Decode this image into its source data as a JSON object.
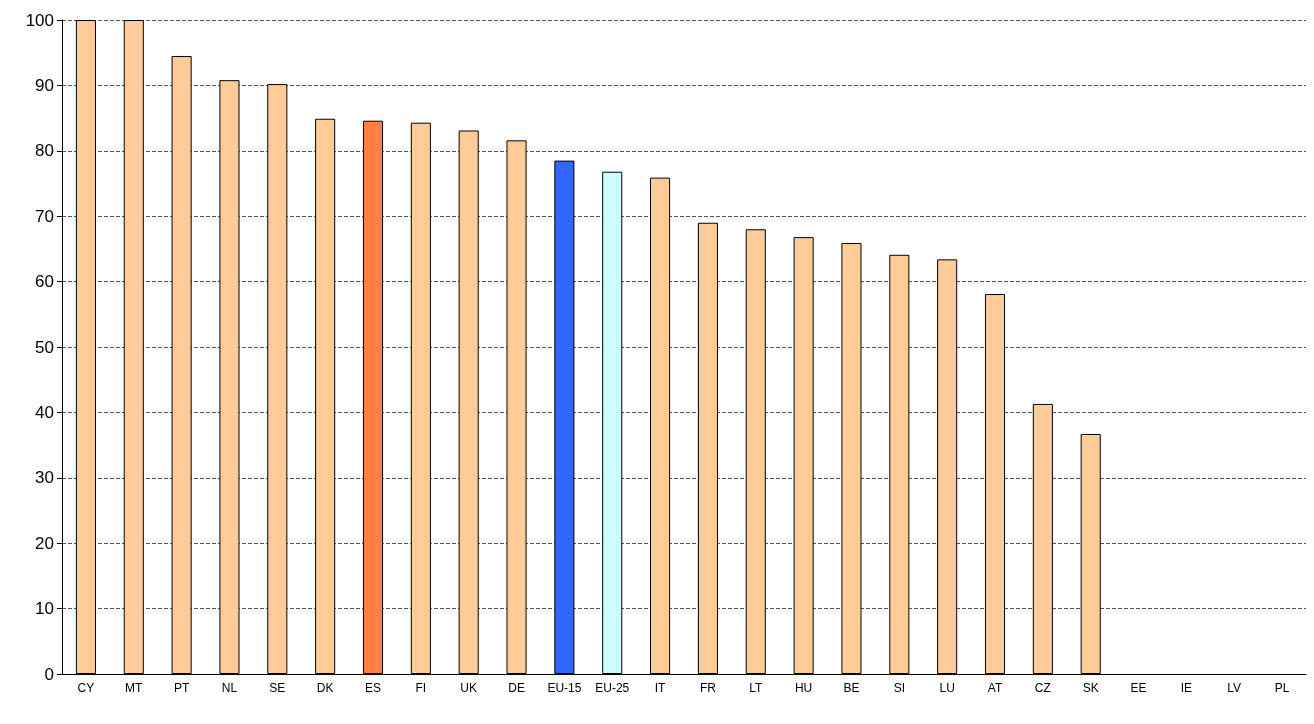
{
  "chart_data": {
    "type": "bar",
    "categories": [
      "CY",
      "MT",
      "PT",
      "NL",
      "SE",
      "DK",
      "ES",
      "FI",
      "UK",
      "DE",
      "EU-15",
      "EU-25",
      "IT",
      "FR",
      "LT",
      "HU",
      "BE",
      "SI",
      "LU",
      "AT",
      "CZ",
      "SK",
      "EE",
      "IE",
      "LV",
      "PL"
    ],
    "values": [
      100,
      100,
      94.5,
      90.8,
      90.2,
      84.9,
      84.6,
      84.3,
      83.1,
      81.6,
      78.5,
      76.8,
      75.9,
      69,
      68,
      66.8,
      65.9,
      64.1,
      63.4,
      58.1,
      41.3,
      36.7,
      null,
      null,
      null,
      null
    ],
    "colors": [
      "#ffcc99",
      "#ffcc99",
      "#ffcc99",
      "#ffcc99",
      "#ffcc99",
      "#ffcc99",
      "#ff8040",
      "#ffcc99",
      "#ffcc99",
      "#ffcc99",
      "#3366ff",
      "#ccffff",
      "#ffcc99",
      "#ffcc99",
      "#ffcc99",
      "#ffcc99",
      "#ffcc99",
      "#ffcc99",
      "#ffcc99",
      "#ffcc99",
      "#ffcc99",
      "#ffcc99",
      "#ffcc99",
      "#ffcc99",
      "#ffcc99",
      "#ffcc99"
    ],
    "ylim": [
      0,
      100
    ],
    "yticks": [
      0,
      10,
      20,
      30,
      40,
      50,
      60,
      70,
      80,
      90,
      100
    ],
    "grid": "y"
  }
}
